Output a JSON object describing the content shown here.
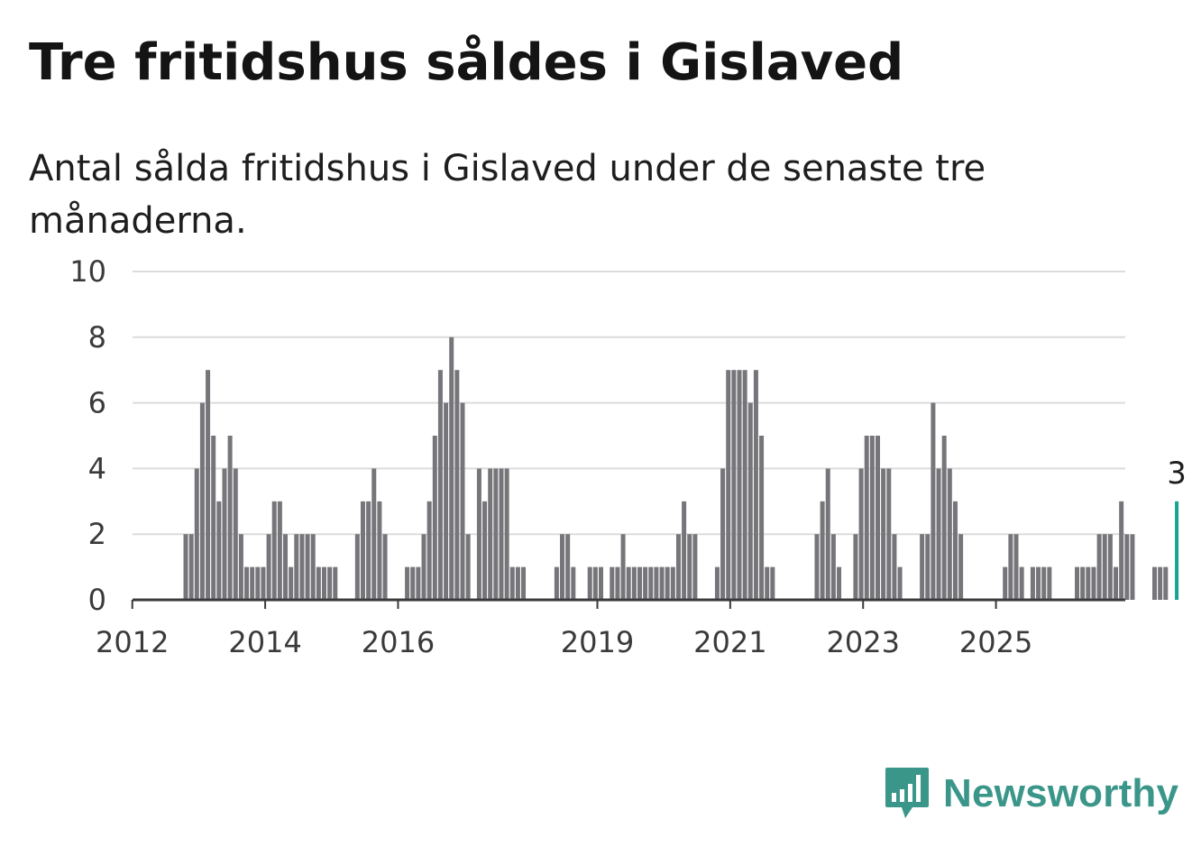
{
  "header": {
    "title": "Tre fritidshus såldes i Gislaved",
    "subtitle": "Antal sålda fritidshus i Gislaved under de senaste tre månaderna."
  },
  "brand": {
    "name": "Newsworthy",
    "icon": "newsworthy-logo-icon",
    "color": "#3b968a"
  },
  "colors": {
    "bar": "#76757a",
    "highlight": "#17a392",
    "grid": "#dcdcdc",
    "axis": "#3a3a3a"
  },
  "chart_data": {
    "type": "bar",
    "title": "Tre fritidshus såldes i Gislaved",
    "subtitle": "Antal sålda fritidshus i Gislaved under de senaste tre månaderna.",
    "xlabel": "",
    "ylabel": "",
    "ylim": [
      0,
      10
    ],
    "yticks": [
      0,
      2,
      4,
      6,
      8,
      10
    ],
    "xticks": [
      "2012",
      "2014",
      "2016",
      "2019",
      "2021",
      "2023",
      "2025"
    ],
    "grid": true,
    "x_start": "2011-01",
    "x_end": "2025-10",
    "highlight_last": true,
    "highlight_label": "3",
    "values": [
      0,
      0,
      0,
      0,
      0,
      0,
      0,
      0,
      0,
      0,
      0,
      0,
      0,
      0,
      0,
      0,
      0,
      0,
      0,
      0,
      0,
      2,
      2,
      4,
      6,
      7,
      5,
      3,
      4,
      5,
      4,
      2,
      1,
      1,
      1,
      1,
      2,
      3,
      3,
      2,
      1,
      2,
      2,
      2,
      2,
      1,
      1,
      1,
      1,
      0,
      0,
      0,
      2,
      3,
      3,
      4,
      3,
      2,
      0,
      0,
      0,
      1,
      1,
      1,
      2,
      3,
      5,
      7,
      6,
      8,
      7,
      6,
      2,
      0,
      4,
      3,
      4,
      4,
      4,
      4,
      1,
      1,
      1,
      0,
      0,
      0,
      0,
      0,
      1,
      2,
      2,
      1,
      0,
      0,
      1,
      1,
      1,
      0,
      1,
      1,
      2,
      1,
      1,
      1,
      1,
      1,
      1,
      1,
      1,
      1,
      2,
      3,
      2,
      2,
      0,
      0,
      0,
      1,
      4,
      7,
      7,
      7,
      7,
      6,
      7,
      5,
      1,
      1,
      0,
      0,
      0,
      0,
      0,
      0,
      0,
      2,
      3,
      4,
      2,
      1,
      0,
      0,
      2,
      4,
      5,
      5,
      5,
      4,
      4,
      2,
      1,
      0,
      0,
      0,
      2,
      2,
      6,
      4,
      5,
      4,
      3,
      2,
      0,
      0,
      0,
      0,
      0,
      0,
      0,
      1,
      2,
      2,
      1,
      0,
      1,
      1,
      1,
      1,
      0,
      0,
      0,
      0,
      1,
      1,
      1,
      1,
      2,
      2,
      2,
      1,
      3,
      2,
      2,
      0,
      0,
      0,
      1,
      1,
      1,
      0,
      3
    ]
  }
}
